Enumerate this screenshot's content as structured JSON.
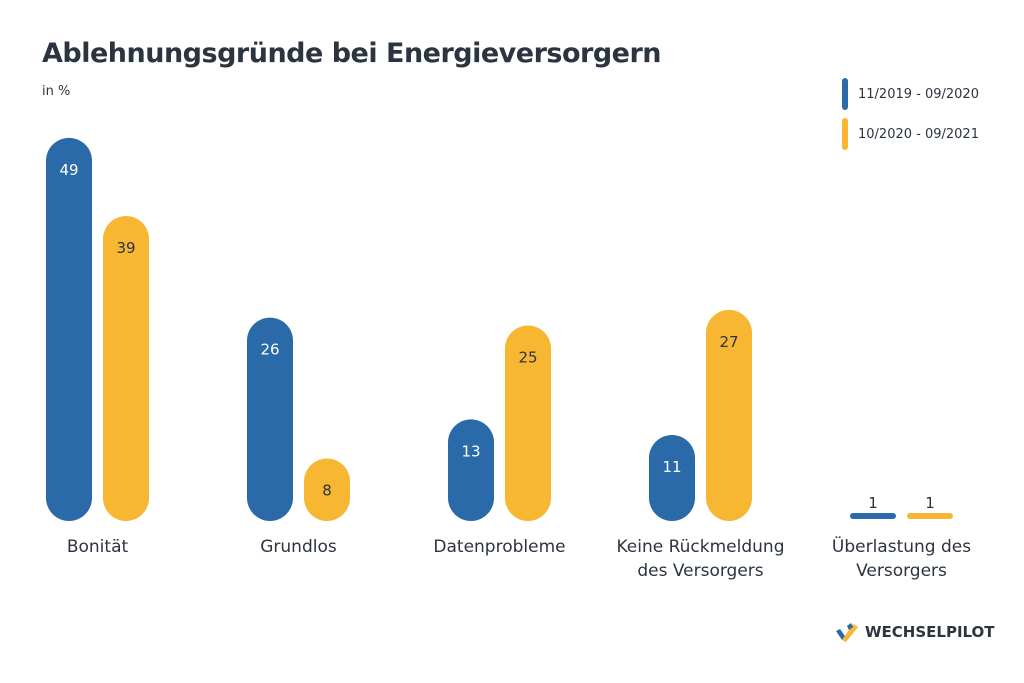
{
  "chart_data": {
    "type": "bar",
    "title": "Ablehnungsgründe bei Energieversorgern",
    "subtitle": "in %",
    "categories": [
      [
        "Bonität"
      ],
      [
        "Grundlos"
      ],
      [
        "Datenprobleme"
      ],
      [
        "Keine Rückmeldung",
        "des Versorgers"
      ],
      [
        "Überlastung des",
        "Versorgers"
      ]
    ],
    "series": [
      {
        "name": "11/2019 - 09/2020",
        "color": "#2b6aa8",
        "label_color": "#ffffff",
        "values": [
          49,
          26,
          13,
          11,
          1
        ]
      },
      {
        "name": "10/2020 - 09/2021",
        "color": "#f7b733",
        "label_color": "#2c3440",
        "values": [
          39,
          8,
          25,
          27,
          1
        ]
      }
    ],
    "ylim": [
      0,
      50
    ],
    "grid": false,
    "legend": "top-right"
  },
  "brand": {
    "name": "WECHSELPILOT"
  }
}
